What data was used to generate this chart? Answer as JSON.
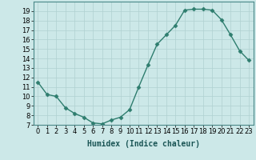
{
  "x": [
    0,
    1,
    2,
    3,
    4,
    5,
    6,
    7,
    8,
    9,
    10,
    11,
    12,
    13,
    14,
    15,
    16,
    17,
    18,
    19,
    20,
    21,
    22,
    23
  ],
  "y": [
    11.5,
    10.2,
    10.0,
    8.8,
    8.2,
    7.8,
    7.2,
    7.1,
    7.5,
    7.8,
    8.6,
    11.0,
    13.3,
    15.5,
    16.5,
    17.5,
    19.1,
    19.2,
    19.2,
    19.1,
    18.1,
    16.5,
    14.8,
    13.8
  ],
  "line_color": "#2e7d6e",
  "marker": "D",
  "marker_size": 2.5,
  "bg_color": "#cce8e8",
  "grid_color": "#b0d0d0",
  "xlabel": "Humidex (Indice chaleur)",
  "ylim": [
    7,
    20
  ],
  "xlim": [
    -0.5,
    23.5
  ],
  "yticks": [
    7,
    8,
    9,
    10,
    11,
    12,
    13,
    14,
    15,
    16,
    17,
    18,
    19
  ],
  "xticks": [
    0,
    1,
    2,
    3,
    4,
    5,
    6,
    7,
    8,
    9,
    10,
    11,
    12,
    13,
    14,
    15,
    16,
    17,
    18,
    19,
    20,
    21,
    22,
    23
  ],
  "xlabel_fontsize": 7,
  "tick_fontsize": 6,
  "line_width": 1.0
}
